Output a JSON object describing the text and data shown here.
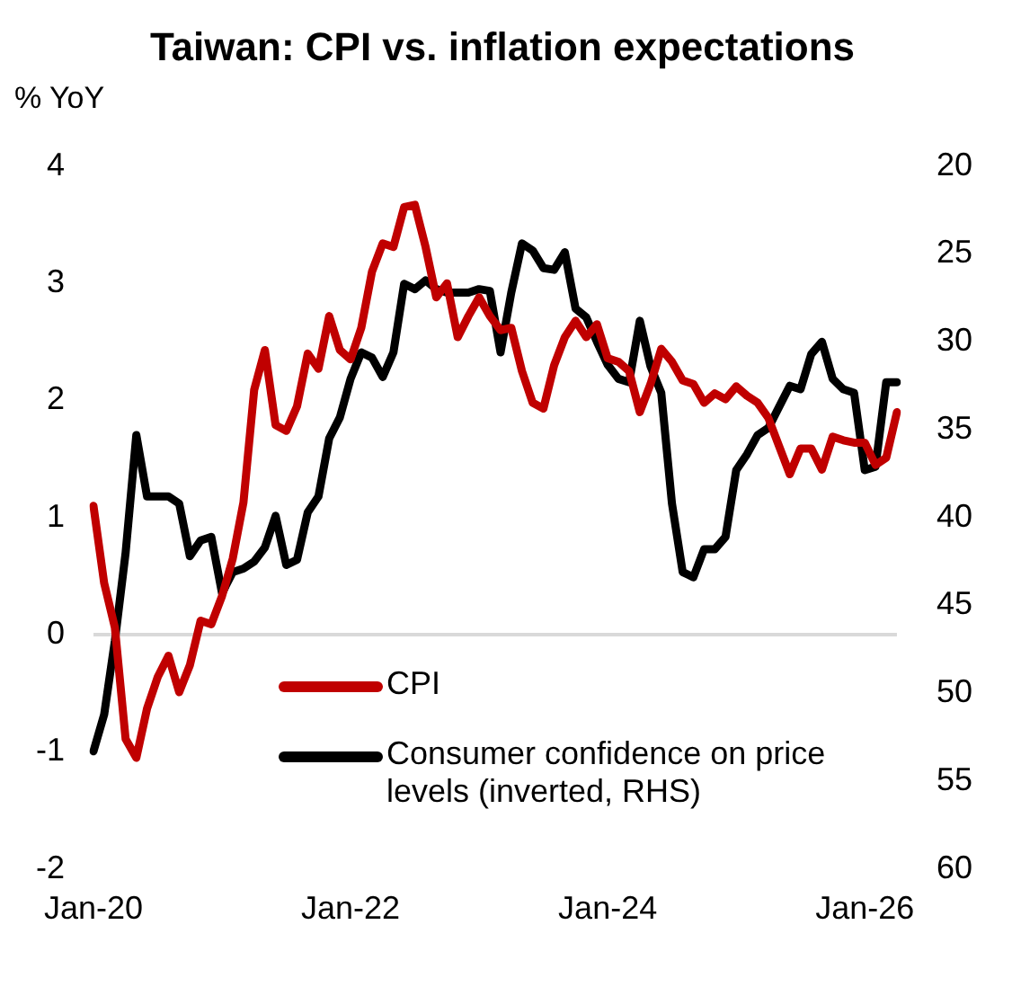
{
  "chart_data": {
    "type": "line",
    "title": "Taiwan: CPI vs. inflation expectations",
    "ylabel": "% YoY",
    "categories": [
      "Jan-20",
      null,
      null,
      null,
      null,
      null,
      null,
      null,
      null,
      null,
      null,
      null,
      null,
      null,
      null,
      null,
      null,
      null,
      null,
      null,
      null,
      null,
      null,
      null,
      "Jan-22",
      null,
      null,
      null,
      null,
      null,
      null,
      null,
      null,
      null,
      null,
      null,
      null,
      null,
      null,
      null,
      null,
      null,
      null,
      null,
      null,
      null,
      null,
      null,
      "Jan-24",
      null,
      null,
      null,
      null,
      null,
      null,
      null,
      null,
      null,
      null,
      null,
      null,
      null,
      null,
      null,
      null,
      null,
      null,
      null,
      null,
      null,
      null,
      null,
      "Jan-26",
      null,
      null,
      null
    ],
    "series": [
      {
        "name": "CPI",
        "color": "#c00000",
        "values": [
          1.1,
          0.44,
          0.06,
          -0.89,
          -1.05,
          -0.63,
          -0.36,
          -0.18,
          -0.49,
          -0.26,
          0.12,
          0.09,
          0.33,
          0.65,
          1.13,
          2.09,
          2.43,
          1.79,
          1.74,
          1.95,
          2.4,
          2.27,
          2.72,
          2.43,
          2.35,
          2.62,
          3.1,
          3.34,
          3.31,
          3.65,
          3.67,
          3.31,
          2.88,
          3.0,
          2.54,
          2.72,
          2.88,
          2.72,
          2.6,
          2.62,
          2.25,
          1.98,
          1.93,
          2.3,
          2.54,
          2.68,
          2.54,
          2.65,
          2.36,
          2.33,
          2.25,
          1.9,
          2.14,
          2.44,
          2.33,
          2.17,
          2.14,
          1.98,
          2.06,
          2.01,
          2.12,
          2.04,
          1.98,
          1.85,
          1.61,
          1.37,
          1.59,
          1.59,
          1.41,
          1.69,
          1.66,
          1.64,
          1.64,
          1.45,
          1.51,
          1.9
        ]
      },
      {
        "name": "Consumer confidence on price levels (inverted, RHS)",
        "color": "#000000",
        "axis": "y2",
        "values": [
          53.3,
          51.2,
          47.0,
          42.0,
          35.3,
          38.8,
          38.8,
          38.8,
          39.2,
          42.2,
          41.3,
          41.1,
          44.3,
          43.1,
          42.9,
          42.5,
          41.7,
          39.9,
          42.7,
          42.4,
          39.7,
          38.8,
          35.5,
          34.3,
          32.1,
          30.6,
          30.9,
          32.0,
          30.6,
          26.7,
          27.0,
          26.5,
          27.0,
          27.2,
          27.2,
          27.2,
          27.0,
          27.1,
          30.6,
          27.2,
          24.4,
          24.8,
          25.8,
          25.9,
          24.9,
          28.1,
          28.6,
          30.0,
          31.3,
          32.1,
          32.3,
          28.8,
          31.4,
          32.9,
          39.2,
          43.1,
          43.4,
          41.8,
          41.8,
          41.1,
          37.3,
          36.4,
          35.3,
          34.9,
          33.7,
          32.5,
          32.7,
          30.7,
          30.0,
          32.1,
          32.7,
          32.9,
          37.3,
          37.1,
          32.3,
          32.3
        ]
      }
    ],
    "ylim": [
      -2,
      4
    ],
    "yticks": [
      -2,
      -1,
      0,
      1,
      2,
      3,
      4
    ],
    "y2lim": [
      60,
      20
    ],
    "y2ticks": [
      60,
      55,
      50,
      45,
      40,
      35,
      30,
      25,
      20
    ],
    "legend": "bottom"
  }
}
